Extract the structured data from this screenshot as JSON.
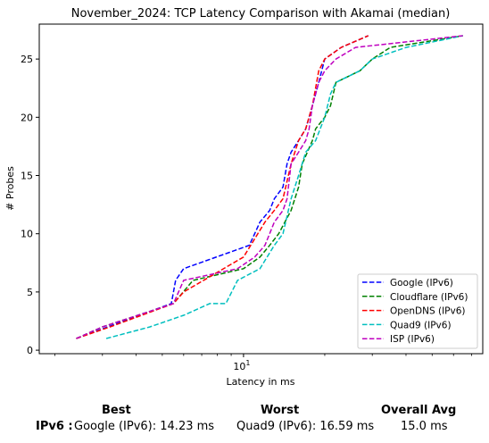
{
  "chart_data": {
    "type": "line",
    "title": "November_2024: TCP Latency Comparison with Akamai (median)",
    "xlabel": "Latency in ms",
    "ylabel": "# Probes",
    "x_scale": "log",
    "xlim": [
      1.75,
      77
    ],
    "ylim": [
      -0.3,
      28.0
    ],
    "x_ticks": [
      {
        "value": 10,
        "label": "10^1"
      }
    ],
    "y_ticks": [
      0,
      5,
      10,
      15,
      20,
      25
    ],
    "grid": false,
    "legend_position": "lower right",
    "series": [
      {
        "name": "Google (IPv6)",
        "color": "#0000ff",
        "x": [
          2.4,
          5.4,
          5.5,
          5.6,
          6.0,
          10.5,
          11.0,
          11.5,
          12.5,
          13.0,
          14.0,
          14.5,
          15.0,
          16.0,
          17.0,
          18.0,
          19.0,
          20.0,
          23.0,
          29.0
        ],
        "y": [
          1,
          4,
          5,
          6,
          7,
          9,
          10,
          11,
          12,
          13,
          14,
          16,
          17,
          18,
          19,
          21,
          23,
          25,
          26,
          27
        ]
      },
      {
        "name": "Cloudflare (IPv6)",
        "color": "#008000",
        "x": [
          2.4,
          3.0,
          5.5,
          6.5,
          10.0,
          11.5,
          12.5,
          13.5,
          15.0,
          16.0,
          16.5,
          18.0,
          18.5,
          20.0,
          21.0,
          22.0,
          27.0,
          30.0,
          35.0,
          65.0
        ],
        "y": [
          1,
          2,
          4,
          6,
          7,
          8,
          9,
          10,
          12,
          14,
          16,
          18,
          19,
          20,
          21,
          23,
          24,
          25,
          26,
          27
        ]
      },
      {
        "name": "OpenDNS (IPv6)",
        "color": "#ff0000",
        "x": [
          2.4,
          3.2,
          5.5,
          6.0,
          10.0,
          12.0,
          13.0,
          14.0,
          15.0,
          16.0,
          17.0,
          18.0,
          19.0,
          20.0,
          23.0,
          29.0
        ],
        "y": [
          1,
          2,
          4,
          5,
          8,
          11,
          12,
          13,
          16,
          18,
          19,
          21,
          24,
          25,
          26,
          27
        ]
      },
      {
        "name": "Quad9 (IPv6)",
        "color": "#00bfbf",
        "x": [
          3.1,
          4.5,
          6.0,
          7.5,
          8.6,
          9.5,
          11.5,
          13.0,
          14.0,
          15.0,
          16.0,
          17.0,
          18.5,
          20.0,
          21.0,
          22.0,
          27.0,
          30.0,
          40.0,
          65.0
        ],
        "y": [
          1,
          2,
          3,
          4,
          4,
          6,
          7,
          9,
          10,
          13,
          15,
          17,
          18,
          20,
          22,
          23,
          24,
          25,
          26,
          27
        ]
      },
      {
        "name": "ISP (IPv6)",
        "color": "#bf00bf",
        "x": [
          2.4,
          3.0,
          5.5,
          6.0,
          9.5,
          11.0,
          12.0,
          13.0,
          14.0,
          14.5,
          15.0,
          16.0,
          17.0,
          17.5,
          18.0,
          19.0,
          20.0,
          22.0,
          26.0,
          65.0
        ],
        "y": [
          1,
          2,
          4,
          6,
          7,
          8,
          9,
          11,
          12,
          13,
          16,
          17,
          18,
          19,
          21,
          23,
          24,
          25,
          26,
          27
        ]
      }
    ]
  },
  "summary": {
    "headers": {
      "best": "Best",
      "worst": "Worst",
      "avg": "Overall Avg"
    },
    "row_label": "IPv6 :",
    "best": "Google (IPv6): 14.23 ms",
    "worst": "Quad9 (IPv6): 16.59 ms",
    "avg": "15.0 ms"
  }
}
